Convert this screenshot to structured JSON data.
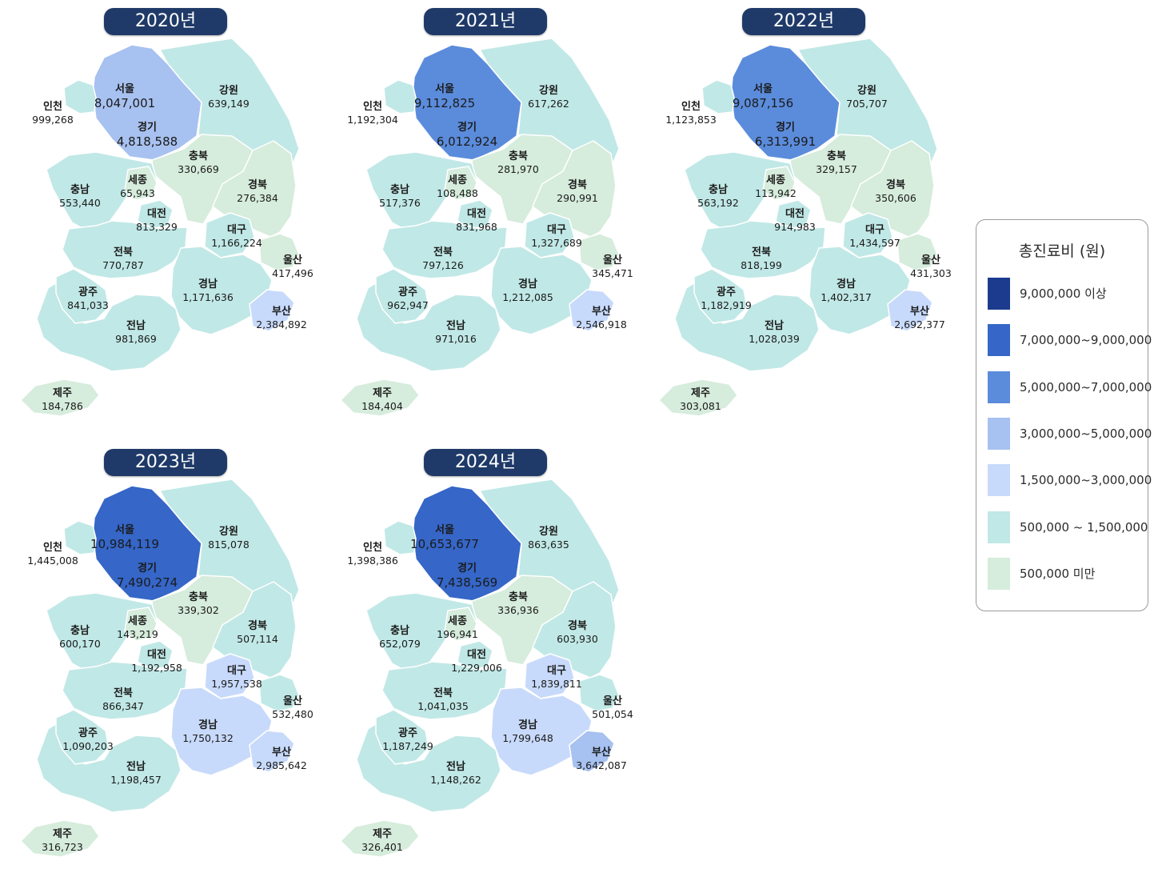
{
  "legend": {
    "title": "총진료비 (원)",
    "items": [
      {
        "label": "9,000,000 이상",
        "color": "#1c3b8f"
      },
      {
        "label": "7,000,000~9,000,000",
        "color": "#3566c8"
      },
      {
        "label": "5,000,000~7,000,000",
        "color": "#5b8cdc"
      },
      {
        "label": "3,000,000~5,000,000",
        "color": "#a7c1f0"
      },
      {
        "label": "1,500,000~3,000,000",
        "color": "#c8dafb"
      },
      {
        "label": "500,000 ~ 1,500,000",
        "color": "#c0e8e6"
      },
      {
        "label": "500,000 미만",
        "color": "#d6ecdc"
      }
    ]
  },
  "region_names": {
    "incheon": "인천",
    "seoul": "서울",
    "gyeonggi": "경기",
    "gangwon": "강원",
    "chungbuk": "충북",
    "chungnam": "충남",
    "sejong": "세종",
    "daejeon": "대전",
    "gyeongbuk": "경북",
    "daegu": "대구",
    "ulsan": "울산",
    "jeonbuk": "전북",
    "gwangju": "광주",
    "gyeongnam": "경남",
    "busan": "부산",
    "jeonnam": "전남",
    "jeju": "제주"
  },
  "years": [
    {
      "year": "2020년",
      "regions": {
        "incheon": "999,268",
        "seoul": "8,047,001",
        "gyeonggi": "4,818,588",
        "gangwon": "639,149",
        "chungbuk": "330,669",
        "chungnam": "553,440",
        "sejong": "65,943",
        "daejeon": "813,329",
        "gyeongbuk": "276,384",
        "daegu": "1,166,224",
        "ulsan": "417,496",
        "jeonbuk": "770,787",
        "gwangju": "841,033",
        "gyeongnam": "1,171,636",
        "busan": "2,384,892",
        "jeonnam": "981,869",
        "jeju": "184,786"
      }
    },
    {
      "year": "2021년",
      "regions": {
        "incheon": "1,192,304",
        "seoul": "9,112,825",
        "gyeonggi": "6,012,924",
        "gangwon": "617,262",
        "chungbuk": "281,970",
        "chungnam": "517,376",
        "sejong": "108,488",
        "daejeon": "831,968",
        "gyeongbuk": "290,991",
        "daegu": "1,327,689",
        "ulsan": "345,471",
        "jeonbuk": "797,126",
        "gwangju": "962,947",
        "gyeongnam": "1,212,085",
        "busan": "2,546,918",
        "jeonnam": "971,016",
        "jeju": "184,404"
      }
    },
    {
      "year": "2022년",
      "regions": {
        "incheon": "1,123,853",
        "seoul": "9,087,156",
        "gyeonggi": "6,313,991",
        "gangwon": "705,707",
        "chungbuk": "329,157",
        "chungnam": "563,192",
        "sejong": "113,942",
        "daejeon": "914,983",
        "gyeongbuk": "350,606",
        "daegu": "1,434,597",
        "ulsan": "431,303",
        "jeonbuk": "818,199",
        "gwangju": "1,182,919",
        "gyeongnam": "1,402,317",
        "busan": "2,692,377",
        "jeonnam": "1,028,039",
        "jeju": "303,081"
      }
    },
    {
      "year": "2023년",
      "regions": {
        "incheon": "1,445,008",
        "seoul": "10,984,119",
        "gyeonggi": "7,490,274",
        "gangwon": "815,078",
        "chungbuk": "339,302",
        "chungnam": "600,170",
        "sejong": "143,219",
        "daejeon": "1,192,958",
        "gyeongbuk": "507,114",
        "daegu": "1,957,538",
        "ulsan": "532,480",
        "jeonbuk": "866,347",
        "gwangju": "1,090,203",
        "gyeongnam": "1,750,132",
        "busan": "2,985,642",
        "jeonnam": "1,198,457",
        "jeju": "316,723"
      }
    },
    {
      "year": "2024년",
      "regions": {
        "incheon": "1,398,386",
        "seoul": "10,653,677",
        "gyeonggi": "7,438,569",
        "gangwon": "863,635",
        "chungbuk": "336,936",
        "chungnam": "652,079",
        "sejong": "196,941",
        "daejeon": "1,229,006",
        "gyeongbuk": "603,930",
        "daegu": "1,839,811",
        "ulsan": "501,054",
        "jeonbuk": "1,041,035",
        "gwangju": "1,187,249",
        "gyeongnam": "1,799,648",
        "busan": "3,642,087",
        "jeonnam": "1,148,262",
        "jeju": "326,401"
      }
    }
  ]
}
